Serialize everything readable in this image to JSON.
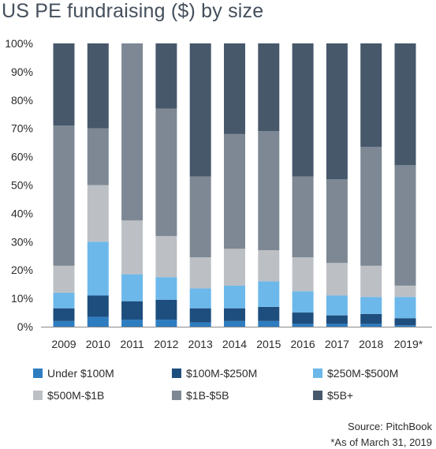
{
  "title": "US PE fundraising ($) by size",
  "source": "Source: PitchBook",
  "footnote": "*As of March 31, 2019",
  "colors": {
    "Under $100M": "#2e7dc0",
    "$100M-$250M": "#1d4e7d",
    "$250M-$500M": "#6cb8ea",
    "$500M-$1B": "#bcc0c5",
    "$1B-$5B": "#7d8894",
    "$5B+": "#47586b",
    "title": "#444f5c"
  },
  "chart_data": {
    "type": "bar",
    "stacked": true,
    "categories": [
      "2009",
      "2010",
      "2011",
      "2012",
      "2013",
      "2014",
      "2015",
      "2016",
      "2017",
      "2018",
      "2019*"
    ],
    "ylim": [
      0,
      100
    ],
    "yticks": [
      "0%",
      "10%",
      "20%",
      "30%",
      "40%",
      "50%",
      "60%",
      "70%",
      "80%",
      "90%",
      "100%"
    ],
    "grid": false,
    "legend_position": "bottom",
    "series": [
      {
        "name": "Under $100M",
        "values": [
          2,
          3.5,
          2.5,
          2.5,
          1.5,
          2,
          2,
          1,
          1,
          1,
          0.5
        ]
      },
      {
        "name": "$100M-$250M",
        "values": [
          4.5,
          7.5,
          6.5,
          7,
          5,
          4.5,
          5,
          4,
          3,
          3.5,
          2.5
        ]
      },
      {
        "name": "$250M-$500M",
        "values": [
          5.5,
          19,
          9.5,
          8,
          7,
          8,
          9,
          7.5,
          7,
          6,
          7.5
        ]
      },
      {
        "name": "$500M-$1B",
        "values": [
          9.5,
          20,
          19,
          14.5,
          11,
          13,
          11,
          12,
          11.5,
          11,
          4
        ]
      },
      {
        "name": "$1B-$5B",
        "values": [
          49.5,
          20,
          62.5,
          45,
          28.5,
          40.5,
          42,
          28.5,
          29.5,
          42,
          42.5
        ]
      },
      {
        "name": "$5B+",
        "values": [
          29,
          30,
          0,
          23,
          47,
          32,
          31,
          47,
          48,
          36.5,
          43
        ]
      }
    ]
  }
}
